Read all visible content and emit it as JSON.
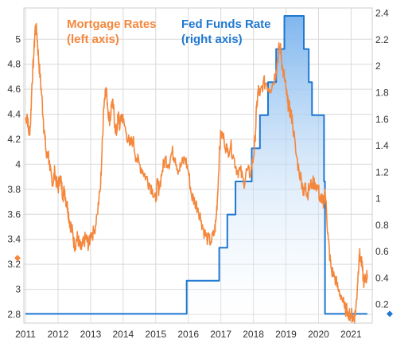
{
  "chart_data": {
    "type": "line",
    "title": "",
    "xlabel": "",
    "x_ticks": [
      "2011",
      "2012",
      "2013",
      "2014",
      "2015",
      "2016",
      "2017",
      "2018",
      "2019",
      "2020",
      "2021"
    ],
    "x_range": [
      2010.95,
      2021.65
    ],
    "y_left": {
      "range": [
        2.73,
        5.25
      ],
      "ticks": [
        "2.8",
        "3",
        "3.2",
        "3.4",
        "3.6",
        "3.8",
        "4",
        "4.2",
        "4.4",
        "4.6",
        "4.8",
        "5"
      ],
      "tick_values": [
        2.8,
        3.0,
        3.2,
        3.4,
        3.6,
        3.8,
        4.0,
        4.2,
        4.4,
        4.6,
        4.8,
        5.0
      ]
    },
    "y_right": {
      "range": [
        0.06,
        2.44
      ],
      "ticks": [
        "0.2",
        "0.4",
        "0.6",
        "0.8",
        "1",
        "1.2",
        "1.4",
        "1.6",
        "1.8",
        "2",
        "2.2",
        "2.4"
      ],
      "tick_values": [
        0.2,
        0.4,
        0.6,
        0.8,
        1.0,
        1.2,
        1.4,
        1.6,
        1.8,
        2.0,
        2.2,
        2.4
      ]
    },
    "markers": {
      "left_value": 3.25,
      "right_value": 0.13
    },
    "legend": {
      "mortgage": {
        "line1": "Mortgage Rates",
        "line2": "(left axis)"
      },
      "fed": {
        "line1": "Fed Funds Rate",
        "line2": "(right axis)"
      }
    },
    "colors": {
      "mortgage": "#f4873c",
      "fed": "#1f78d1",
      "fed_fill_top": "#7fb6ee",
      "fed_fill_bottom": "#ffffff",
      "grid": "#d9d9d9"
    },
    "grid": true,
    "series": [
      {
        "name": "Mortgage Rates",
        "axis": "left",
        "x": [
          2011.0,
          2011.05,
          2011.1,
          2011.15,
          2011.2,
          2011.25,
          2011.3,
          2011.35,
          2011.4,
          2011.45,
          2011.5,
          2011.55,
          2011.6,
          2011.65,
          2011.7,
          2011.75,
          2011.8,
          2011.85,
          2011.9,
          2011.95,
          2012.0,
          2012.05,
          2012.1,
          2012.15,
          2012.2,
          2012.25,
          2012.3,
          2012.35,
          2012.4,
          2012.45,
          2012.5,
          2012.55,
          2012.6,
          2012.65,
          2012.7,
          2012.75,
          2012.8,
          2012.85,
          2012.9,
          2012.95,
          2013.0,
          2013.1,
          2013.2,
          2013.3,
          2013.35,
          2013.4,
          2013.45,
          2013.5,
          2013.55,
          2013.6,
          2013.65,
          2013.7,
          2013.75,
          2013.8,
          2013.85,
          2013.9,
          2013.95,
          2014.0,
          2014.1,
          2014.2,
          2014.3,
          2014.4,
          2014.5,
          2014.6,
          2014.7,
          2014.8,
          2014.9,
          2015.0,
          2015.05,
          2015.1,
          2015.2,
          2015.3,
          2015.4,
          2015.5,
          2015.6,
          2015.7,
          2015.8,
          2015.9,
          2016.0,
          2016.1,
          2016.2,
          2016.3,
          2016.4,
          2016.5,
          2016.6,
          2016.7,
          2016.8,
          2016.85,
          2016.9,
          2016.95,
          2017.0,
          2017.1,
          2017.2,
          2017.3,
          2017.4,
          2017.5,
          2017.6,
          2017.7,
          2017.8,
          2017.9,
          2018.0,
          2018.05,
          2018.1,
          2018.15,
          2018.2,
          2018.3,
          2018.4,
          2018.5,
          2018.6,
          2018.7,
          2018.75,
          2018.8,
          2018.85,
          2018.9,
          2018.95,
          2019.0,
          2019.05,
          2019.1,
          2019.15,
          2019.2,
          2019.3,
          2019.4,
          2019.5,
          2019.55,
          2019.6,
          2019.65,
          2019.7,
          2019.8,
          2019.9,
          2020.0,
          2020.05,
          2020.1,
          2020.15,
          2020.2,
          2020.25,
          2020.3,
          2020.35,
          2020.4,
          2020.5,
          2020.6,
          2020.7,
          2020.8,
          2020.9,
          2021.0,
          2021.05,
          2021.1,
          2021.15,
          2021.2,
          2021.25,
          2021.3,
          2021.35,
          2021.4,
          2021.45,
          2021.5
        ],
        "y": [
          4.35,
          4.4,
          4.25,
          4.3,
          4.65,
          4.85,
          5.1,
          5.05,
          4.85,
          4.7,
          4.55,
          4.35,
          4.2,
          4.05,
          4.1,
          3.95,
          3.9,
          3.85,
          3.95,
          3.85,
          3.8,
          3.9,
          3.85,
          3.75,
          3.8,
          3.7,
          3.65,
          3.55,
          3.5,
          3.45,
          3.35,
          3.38,
          3.42,
          3.36,
          3.32,
          3.35,
          3.38,
          3.42,
          3.38,
          3.35,
          3.45,
          3.45,
          3.6,
          3.8,
          4.1,
          4.45,
          4.6,
          4.55,
          4.4,
          4.35,
          4.5,
          4.45,
          4.3,
          4.25,
          4.4,
          4.3,
          4.4,
          4.35,
          4.25,
          4.15,
          4.2,
          4.05,
          4.0,
          3.95,
          3.9,
          3.85,
          3.8,
          3.7,
          3.85,
          3.8,
          3.95,
          4.05,
          4.0,
          4.1,
          4.05,
          3.95,
          4.0,
          4.05,
          3.95,
          3.75,
          3.7,
          3.65,
          3.55,
          3.45,
          3.4,
          3.38,
          3.45,
          3.55,
          3.75,
          4.05,
          4.25,
          4.2,
          4.1,
          4.15,
          4.05,
          3.95,
          3.95,
          3.85,
          3.95,
          3.92,
          4.05,
          4.2,
          4.45,
          4.6,
          4.55,
          4.65,
          4.65,
          4.6,
          4.65,
          4.75,
          4.85,
          4.95,
          4.9,
          4.75,
          4.7,
          4.6,
          4.5,
          4.45,
          4.4,
          4.35,
          4.1,
          3.95,
          3.85,
          3.75,
          3.85,
          3.75,
          3.8,
          3.85,
          3.85,
          3.8,
          3.7,
          3.75,
          3.65,
          3.8,
          3.6,
          3.4,
          3.25,
          3.15,
          3.1,
          3.0,
          2.95,
          2.85,
          2.82,
          2.8,
          2.78,
          2.77,
          2.85,
          3.05,
          3.28,
          3.25,
          3.15,
          3.05,
          3.08,
          3.12
        ]
      },
      {
        "name": "Fed Funds Rate",
        "axis": "right",
        "x": [
          2011.0,
          2015.95,
          2015.95,
          2016.95,
          2016.95,
          2017.2,
          2017.2,
          2017.45,
          2017.45,
          2017.95,
          2017.95,
          2018.2,
          2018.2,
          2018.45,
          2018.45,
          2018.7,
          2018.7,
          2018.95,
          2018.95,
          2019.55,
          2019.55,
          2019.7,
          2019.7,
          2019.8,
          2019.8,
          2020.17,
          2020.17,
          2020.2,
          2020.2,
          2021.5
        ],
        "y": [
          0.13,
          0.13,
          0.38,
          0.38,
          0.63,
          0.63,
          0.88,
          0.88,
          1.13,
          1.13,
          1.38,
          1.38,
          1.63,
          1.63,
          1.88,
          1.88,
          2.13,
          2.13,
          2.38,
          2.38,
          2.13,
          2.13,
          1.88,
          1.88,
          1.63,
          1.63,
          1.13,
          1.13,
          0.13,
          0.13
        ]
      }
    ]
  }
}
